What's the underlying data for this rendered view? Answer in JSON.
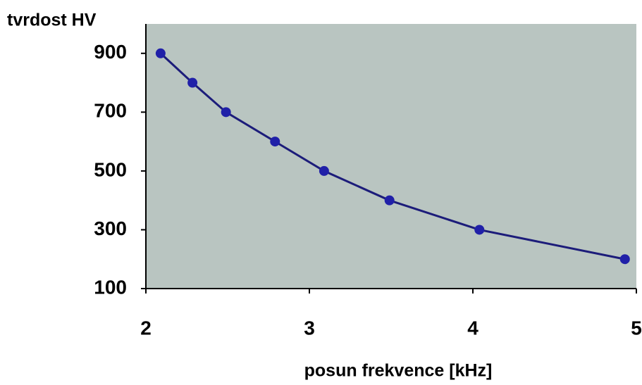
{
  "chart_data": {
    "type": "line",
    "y_label": "tvrdost HV",
    "x_label": "posun frekvence [kHz]",
    "series": [
      {
        "name": "tvrdost",
        "color": "#1c1c7a",
        "x": [
          2.09,
          2.285,
          2.49,
          2.79,
          3.09,
          3.49,
          4.04,
          4.93
        ],
        "values": [
          900,
          800,
          700,
          600,
          500,
          400,
          300,
          200
        ]
      }
    ],
    "xlim": [
      2,
      5
    ],
    "xticks": [
      2,
      3,
      4,
      5
    ],
    "ylim": [
      100,
      1000
    ],
    "yticks": [
      100,
      300,
      500,
      700,
      900
    ],
    "background": "#b9c5c1",
    "marker_color": "#2020a8",
    "grid": false
  }
}
